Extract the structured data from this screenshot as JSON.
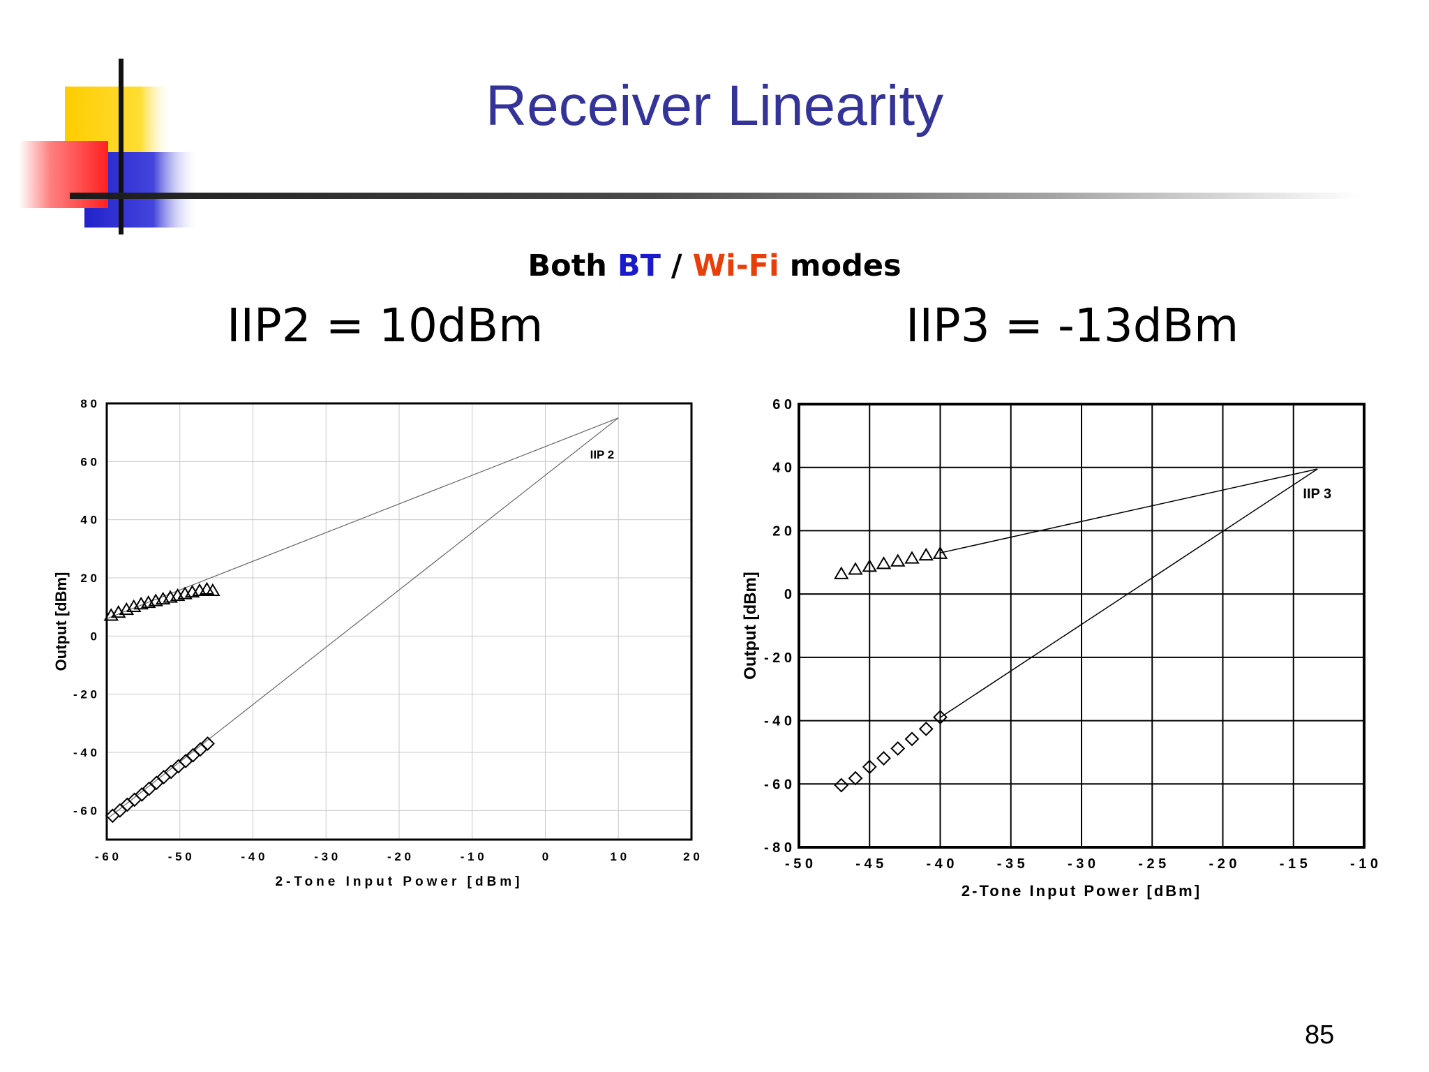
{
  "slide": {
    "title": "Receiver Linearity",
    "subtitle": {
      "part1": "Both ",
      "bt": "BT",
      "sep": " / ",
      "wifi": "Wi-Fi",
      "part2": " modes"
    },
    "iip2_label": "IIP2 = 10dBm",
    "iip3_label": "IIP3 = -13dBm",
    "page_number": "85",
    "colors": {
      "title": "#333399",
      "bt": "#1a1acc",
      "wifi": "#e83e0a",
      "logo_yellow": "#ffcc00",
      "logo_red": "#ff3333",
      "logo_blue": "#3333cc"
    }
  },
  "chart_data": [
    {
      "type": "scatter",
      "xlabel": "2-Tone Input Power [dBm]",
      "ylabel": "Output [dBm]",
      "xlim": [
        -60,
        20
      ],
      "ylim": [
        -70,
        80
      ],
      "xticks": [
        -60,
        -50,
        -40,
        -30,
        -20,
        -10,
        0,
        10,
        20
      ],
      "yticks": [
        80,
        60,
        40,
        20,
        0,
        -20,
        -40,
        -60
      ],
      "grid": true,
      "annotation": {
        "text": "IIP 2",
        "x": 10,
        "y": 75
      },
      "series": [
        {
          "marker": "triangle",
          "x": [
            -59.4,
            -58.4,
            -57.3,
            -56.3,
            -55.3,
            -54.3,
            -53.3,
            -52.3,
            -51.3,
            -50.3,
            -49.3,
            -48.3,
            -47.3,
            -46.3,
            -45.5
          ],
          "y": [
            7,
            8,
            9,
            10,
            10.9,
            11.4,
            12,
            12.6,
            13.2,
            13.8,
            14.4,
            15,
            15.5,
            16,
            15.5
          ]
        },
        {
          "marker": "diamond",
          "x": [
            -59.2,
            -58.2,
            -57.2,
            -56.2,
            -55.2,
            -54.2,
            -53.2,
            -52.2,
            -51.2,
            -50.2,
            -49.2,
            -48.2,
            -47.2,
            -46.2
          ],
          "y": [
            -61.8,
            -60,
            -58,
            -56.3,
            -54.5,
            -52.5,
            -50.5,
            -48.5,
            -46.7,
            -44.8,
            -43,
            -41,
            -39,
            -37
          ]
        }
      ],
      "fit_lines": [
        {
          "from": [
            -60,
            6
          ],
          "to": [
            10,
            75
          ]
        },
        {
          "from": [
            -60,
            -63
          ],
          "to": [
            10,
            75
          ]
        }
      ]
    },
    {
      "type": "scatter",
      "xlabel": "2-Tone Input Power [dBm]",
      "ylabel": "Output [dBm]",
      "xlim": [
        -50,
        -10
      ],
      "ylim": [
        -80,
        60
      ],
      "xticks": [
        -50,
        -45,
        -40,
        -35,
        -30,
        -25,
        -20,
        -15,
        -10
      ],
      "yticks": [
        60,
        40,
        20,
        0,
        -20,
        -40,
        -60,
        -80
      ],
      "grid": true,
      "annotation": {
        "text": "IIP 3",
        "x": -13.3,
        "y": 39.5
      },
      "series": [
        {
          "marker": "triangle",
          "x": [
            -47,
            -46,
            -45,
            -44,
            -43,
            -42,
            -41,
            -40
          ],
          "y": [
            6.3,
            7.7,
            8.6,
            9.5,
            10.3,
            11.2,
            12.2,
            12.7
          ]
        },
        {
          "marker": "diamond",
          "x": [
            -47,
            -46,
            -45,
            -44,
            -43,
            -42,
            -41,
            -40
          ],
          "y": [
            -60.4,
            -58.2,
            -54.6,
            -51.9,
            -48.8,
            -45.8,
            -42.6,
            -38.9
          ]
        }
      ],
      "fit_lines": [
        {
          "from": [
            -40,
            13
          ],
          "to": [
            -13.3,
            39.5
          ]
        },
        {
          "from": [
            -40,
            -39
          ],
          "to": [
            -13.3,
            39.5
          ]
        }
      ]
    }
  ]
}
